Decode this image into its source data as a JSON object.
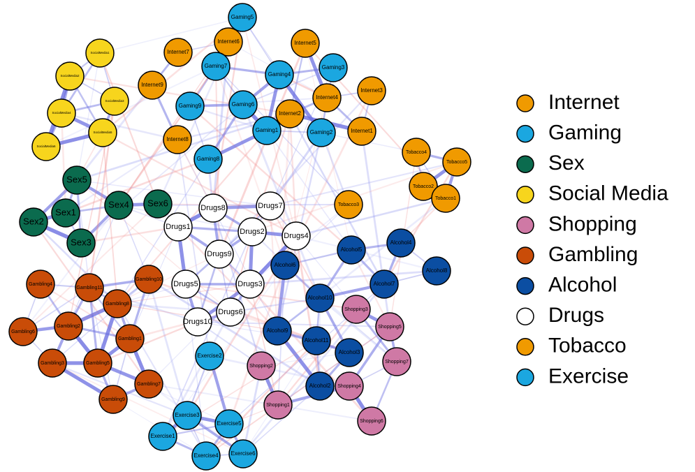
{
  "groups": [
    {
      "name": "Internet",
      "color": "#F09A00",
      "nodes": [
        "Internet7",
        "Internet6",
        "Internet5",
        "Internet9",
        "Internet8",
        "Internet4",
        "Internet3",
        "Internet2",
        "Internet1"
      ]
    },
    {
      "name": "Gaming",
      "color": "#1BA7E0",
      "nodes": [
        "Gaming5",
        "Gaming7",
        "Gaming3",
        "Gaming4",
        "Gaming9",
        "Gaming6",
        "Gaming1",
        "Gaming2",
        "Gaming8"
      ]
    },
    {
      "name": "Sex",
      "color": "#0B6B4E",
      "nodes": [
        "Sex5",
        "Sex1",
        "Sex2",
        "Sex3",
        "Sex4",
        "Sex6"
      ]
    },
    {
      "name": "Social Media",
      "color": "#F7D51D",
      "nodes": [
        "SocialMedia1",
        "SocialMedia2",
        "SocialMedia3",
        "SocialMedia4",
        "SocialMedia5",
        "SocialMedia6"
      ]
    },
    {
      "name": "Shopping",
      "color": "#CF79A5",
      "nodes": [
        "Shopping3",
        "Shopping5",
        "Shopping7",
        "Shopping2",
        "Shopping4",
        "Shopping1",
        "Shopping6"
      ]
    },
    {
      "name": "Gambling",
      "color": "#C94C08",
      "nodes": [
        "Gambling4",
        "Gambling11",
        "Gambling10",
        "Gambling8",
        "Gambling2",
        "Gambling6",
        "Gambling1",
        "Gambling3",
        "Gambling5",
        "Gambling7",
        "Gambling9"
      ]
    },
    {
      "name": "Alcohol",
      "color": "#0B4EA2",
      "nodes": [
        "Alcohol5",
        "Alcohol4",
        "Alcohol6",
        "Alcohol8",
        "Alcohol7",
        "Alcohol10",
        "Alcohol9",
        "Alcohol11",
        "Alcohol3",
        "Alcohol2"
      ]
    },
    {
      "name": "Drugs",
      "color": "#FFFFFF",
      "nodes": [
        "Drugs8",
        "Drugs7",
        "Drugs1",
        "Drugs2",
        "Drugs4",
        "Drugs9",
        "Drugs5",
        "Drugs3",
        "Drugs6",
        "Drugs10"
      ]
    },
    {
      "name": "Tobacco",
      "color": "#F09A00",
      "nodes": [
        "Tobacco4",
        "Tobacco5",
        "Tobacco2",
        "Tobacco1",
        "Tobacco3"
      ]
    },
    {
      "name": "Exercise",
      "color": "#1BA7E0",
      "nodes": [
        "Exercise2",
        "Exercise3",
        "Exercise5",
        "Exercise1",
        "Exercise4",
        "Exercise6"
      ]
    }
  ]
}
